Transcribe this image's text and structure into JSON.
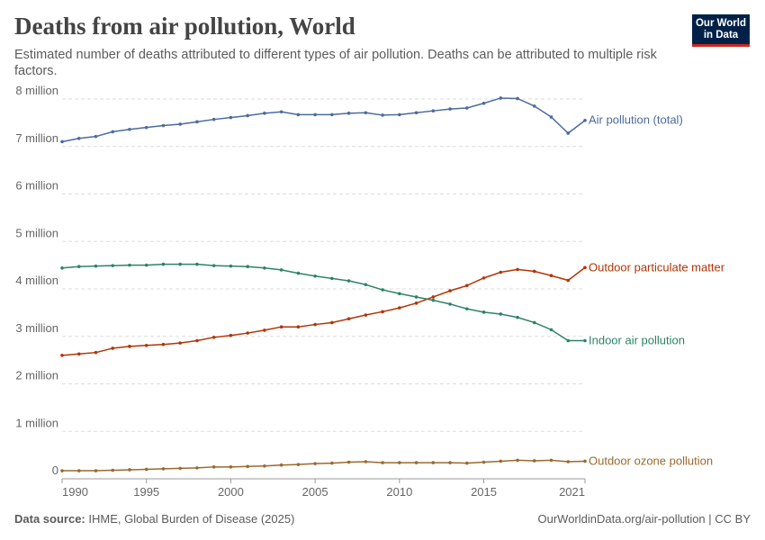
{
  "chart_data": {
    "type": "line",
    "title": "Deaths from air pollution, World",
    "subtitle": "Estimated number of deaths attributed to different types of air pollution. Deaths can be attributed to multiple risk factors.",
    "logo": [
      "Our World",
      "in Data"
    ],
    "source_label": "Data source:",
    "source": "IHME, Global Burden of Disease (2025)",
    "footer_right": "OurWorldinData.org/air-pollution | CC BY",
    "x": [
      1990,
      1991,
      1992,
      1993,
      1994,
      1995,
      1996,
      1997,
      1998,
      1999,
      2000,
      2001,
      2002,
      2003,
      2004,
      2005,
      2006,
      2007,
      2008,
      2009,
      2010,
      2011,
      2012,
      2013,
      2014,
      2015,
      2016,
      2017,
      2018,
      2019,
      2020,
      2021
    ],
    "xlim": [
      1990,
      2021
    ],
    "xticks": [
      1990,
      1995,
      2000,
      2005,
      2010,
      2015,
      2021
    ],
    "ylim": [
      0,
      8000000
    ],
    "yticks": [
      0,
      {
        "value": 1000000,
        "label": "1 million"
      },
      {
        "value": 2000000,
        "label": "2 million"
      },
      {
        "value": 3000000,
        "label": "3 million"
      },
      {
        "value": 4000000,
        "label": "4 million"
      },
      {
        "value": 5000000,
        "label": "5 million"
      },
      {
        "value": 6000000,
        "label": "6 million"
      },
      {
        "value": 7000000,
        "label": "7 million"
      },
      {
        "value": 8000000,
        "label": "8 million"
      }
    ],
    "grid": true,
    "series": [
      {
        "name": "Air pollution (total)",
        "color": "#4c6a9c",
        "values": [
          7100000,
          7170000,
          7210000,
          7310000,
          7360000,
          7400000,
          7440000,
          7470000,
          7520000,
          7570000,
          7610000,
          7650000,
          7700000,
          7730000,
          7670000,
          7670000,
          7670000,
          7700000,
          7710000,
          7660000,
          7670000,
          7710000,
          7750000,
          7790000,
          7810000,
          7910000,
          8020000,
          8010000,
          7850000,
          7620000,
          7280000,
          7550000
        ]
      },
      {
        "name": "Outdoor particulate matter",
        "color": "#b13507",
        "values": [
          2600000,
          2630000,
          2660000,
          2750000,
          2790000,
          2810000,
          2830000,
          2860000,
          2910000,
          2980000,
          3020000,
          3070000,
          3130000,
          3200000,
          3200000,
          3250000,
          3290000,
          3370000,
          3450000,
          3520000,
          3600000,
          3700000,
          3830000,
          3960000,
          4070000,
          4230000,
          4350000,
          4410000,
          4370000,
          4280000,
          4180000,
          4450000
        ]
      },
      {
        "name": "Indoor air pollution",
        "color": "#2c8465",
        "values": [
          4440000,
          4470000,
          4480000,
          4490000,
          4500000,
          4500000,
          4520000,
          4520000,
          4520000,
          4490000,
          4480000,
          4470000,
          4440000,
          4400000,
          4330000,
          4270000,
          4220000,
          4170000,
          4090000,
          3980000,
          3900000,
          3830000,
          3760000,
          3680000,
          3580000,
          3510000,
          3470000,
          3400000,
          3290000,
          3140000,
          2910000,
          2910000
        ]
      },
      {
        "name": "Outdoor ozone pollution",
        "color": "#9a6a2e",
        "values": [
          170000,
          170000,
          170000,
          180000,
          190000,
          200000,
          210000,
          220000,
          230000,
          250000,
          250000,
          260000,
          270000,
          290000,
          300000,
          320000,
          330000,
          350000,
          360000,
          340000,
          340000,
          340000,
          340000,
          340000,
          330000,
          350000,
          370000,
          390000,
          380000,
          390000,
          360000,
          370000
        ]
      }
    ]
  }
}
